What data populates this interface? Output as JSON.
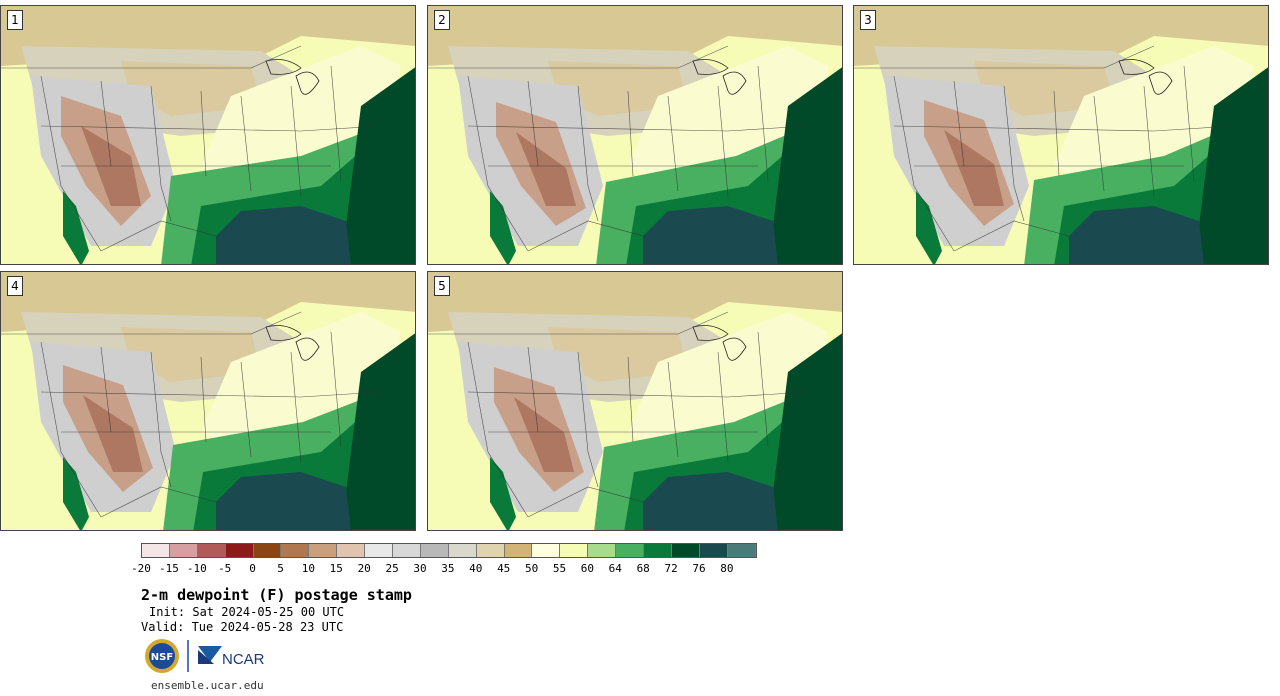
{
  "panels": [
    {
      "label": "1"
    },
    {
      "label": "2"
    },
    {
      "label": "3"
    },
    {
      "label": "4"
    },
    {
      "label": "5"
    }
  ],
  "colorbar": {
    "colors": [
      "#f4e6e6",
      "#d6a0a0",
      "#b05a5a",
      "#8c1a1a",
      "#8b4513",
      "#b07850",
      "#c8a080",
      "#e0c4b0",
      "#e8e8e8",
      "#d8d8d8",
      "#b8b8b8",
      "#d8d8cc",
      "#e0d4b0",
      "#d2b478",
      "#ffffe0",
      "#f6fcb6",
      "#a8dc8c",
      "#48b060",
      "#0a7a3a",
      "#004a2a",
      "#1a4a50",
      "#4a7a7a"
    ],
    "ticks": [
      "-20",
      "-15",
      "-10",
      "-5",
      "0",
      "5",
      "10",
      "15",
      "20",
      "25",
      "30",
      "35",
      "40",
      "45",
      "50",
      "55",
      "60",
      "64",
      "68",
      "72",
      "76",
      "80"
    ]
  },
  "title": "2-m dewpoint (F) postage stamp",
  "init": "Init: Sat 2024-05-25 00 UTC",
  "valid": "Valid: Tue 2024-05-28 23 UTC",
  "logos": {
    "nsf": "NSF",
    "ncar": "NCAR"
  },
  "site": "ensemble.ucar.edu"
}
